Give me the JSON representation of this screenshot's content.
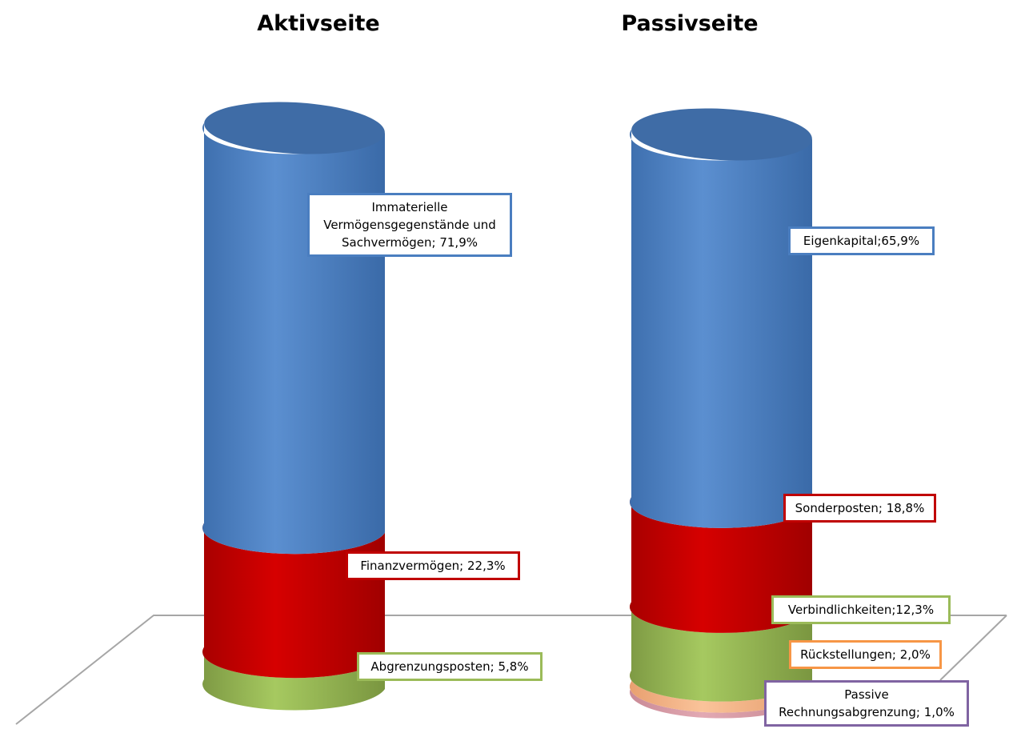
{
  "chart_data": {
    "type": "stacked-bar-3d",
    "colors": {
      "blue": "#4A7EC0",
      "red": "#C00000",
      "green": "#9BBB59",
      "orange": "#F79646",
      "purple": "#8064A2"
    },
    "columns": [
      {
        "title": "Aktivseite",
        "segments": [
          {
            "name": "Abgrenzungsposten",
            "value": 5.8,
            "label": "Abgrenzungsposten; 5,8%",
            "color": "green"
          },
          {
            "name": "Finanzvermögen",
            "value": 22.3,
            "label": "Finanzvermögen; 22,3%",
            "color": "red"
          },
          {
            "name": "Immaterielle Vermögensgegenstände und Sachvermögen",
            "value": 71.9,
            "label": "Immaterielle\nVermögensgegenstände und\nSachvermögen; 71,9%",
            "color": "blue"
          }
        ]
      },
      {
        "title": "Passivseite",
        "segments": [
          {
            "name": "Passive Rechnungsabgrenzung",
            "value": 1.0,
            "label": "Passive\nRechnungsabgrenzung; 1,0%",
            "color": "purple"
          },
          {
            "name": "Rückstellungen",
            "value": 2.0,
            "label": "Rückstellungen; 2,0%",
            "color": "orange"
          },
          {
            "name": "Verbindlichkeiten",
            "value": 12.3,
            "label": "Verbindlichkeiten;12,3%",
            "color": "green"
          },
          {
            "name": "Sonderposten",
            "value": 18.8,
            "label": "Sonderposten; 18,8%",
            "color": "red"
          },
          {
            "name": "Eigenkapital",
            "value": 65.9,
            "label": "Eigenkapital;65,9%",
            "color": "blue"
          }
        ]
      }
    ]
  }
}
